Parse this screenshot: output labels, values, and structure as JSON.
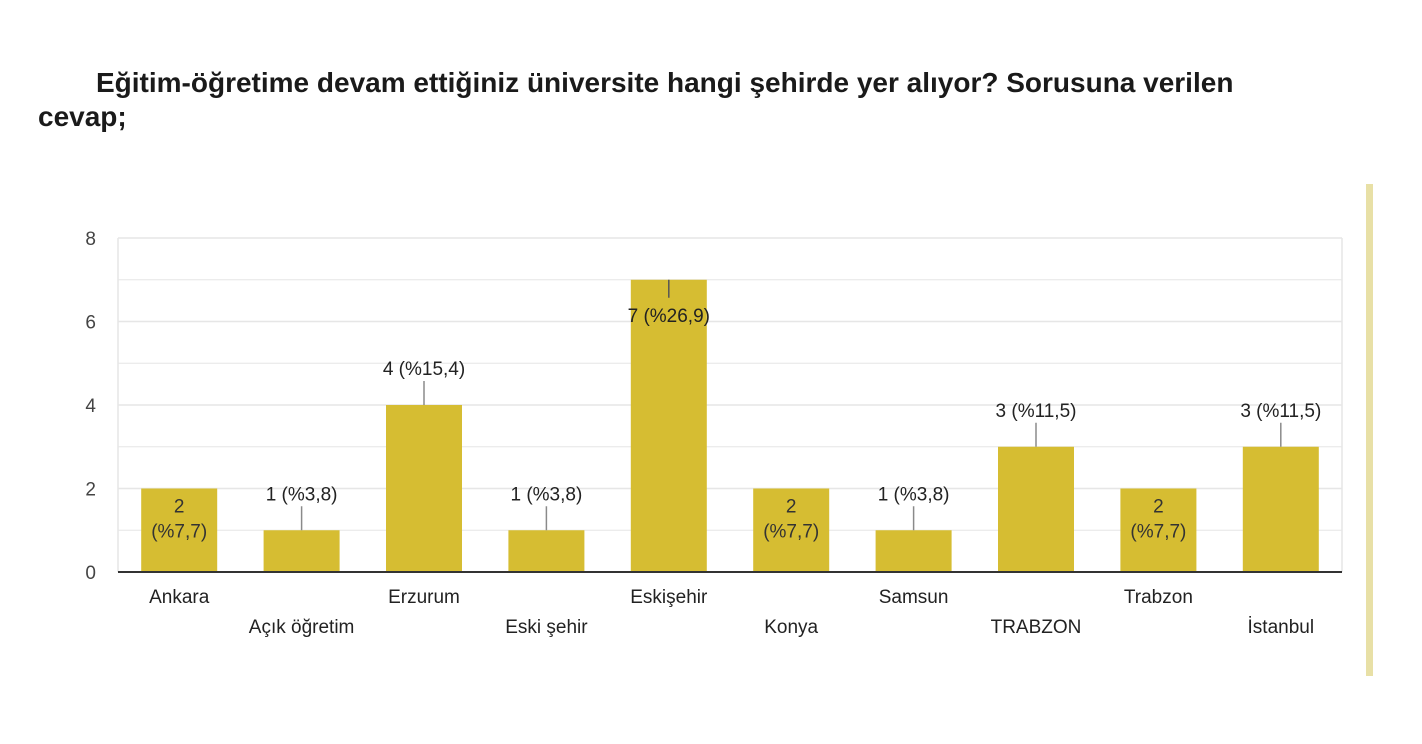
{
  "title": "Eğitim-öğretime devam ettiğiniz üniversite hangi şehirde yer alıyor? Sorusuna verilen cevap;",
  "colors": {
    "bar": "#d6bd32",
    "grid": "#e6e6e6",
    "axis": "#333333",
    "leader": "#8a8a8a",
    "side_bar": "#e8e0a6"
  },
  "chart_data": {
    "type": "bar",
    "categories": [
      "Ankara",
      "Açık öğretim",
      "Erzurum",
      "Eski şehir",
      "Eskişehir",
      "Konya",
      "Samsun",
      "TRABZON",
      "Trabzon",
      "İstanbul"
    ],
    "values": [
      2,
      1,
      4,
      1,
      7,
      2,
      1,
      3,
      2,
      3
    ],
    "data_labels": [
      "2 (%7,7)",
      "1 (%3,8)",
      "4 (%15,4)",
      "1 (%3,8)",
      "7 (%26,9)",
      "2 (%7,7)",
      "1 (%3,8)",
      "3 (%11,5)",
      "2 (%7,7)",
      "3 (%11,5)"
    ],
    "y_ticks": [
      "0",
      "2",
      "4",
      "6",
      "8"
    ],
    "ylim": [
      0,
      8
    ],
    "grid": true,
    "legend": "none",
    "xlabel": "",
    "ylabel": ""
  }
}
